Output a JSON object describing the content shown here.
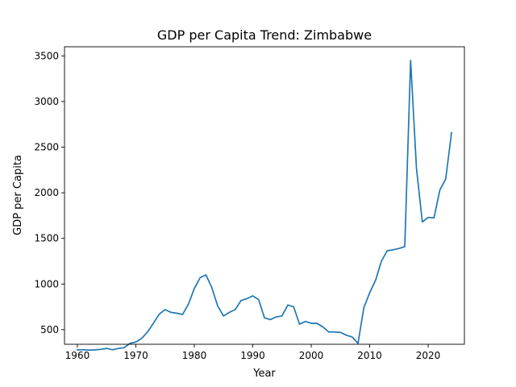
{
  "chart_data": {
    "type": "line",
    "title": "GDP per Capita Trend: Zimbabwe",
    "xlabel": "Year",
    "ylabel": "GDP per Capita",
    "xlim": [
      1957.8,
      2026.2
    ],
    "ylim": [
      340,
      3600
    ],
    "xticks": [
      1960,
      1970,
      1980,
      1990,
      2000,
      2010,
      2020
    ],
    "yticks": [
      500,
      1000,
      1500,
      2000,
      2500,
      3000,
      3500
    ],
    "grid": false,
    "series": [
      {
        "color": "#1f77b4",
        "x": [
          1960,
          1961,
          1962,
          1963,
          1964,
          1965,
          1966,
          1967,
          1968,
          1969,
          1970,
          1971,
          1972,
          1973,
          1974,
          1975,
          1976,
          1977,
          1978,
          1979,
          1980,
          1981,
          1982,
          1983,
          1984,
          1985,
          1986,
          1987,
          1988,
          1989,
          1990,
          1991,
          1992,
          1993,
          1994,
          1995,
          1996,
          1997,
          1998,
          1999,
          2000,
          2001,
          2002,
          2003,
          2004,
          2005,
          2006,
          2007,
          2008,
          2009,
          2010,
          2011,
          2012,
          2013,
          2014,
          2015,
          2016,
          2017,
          2018,
          2019,
          2020,
          2021,
          2022,
          2023,
          2024
        ],
        "y": [
          278,
          281,
          276,
          278,
          284,
          295,
          280,
          294,
          302,
          350,
          365,
          405,
          475,
          570,
          670,
          720,
          690,
          680,
          667,
          780,
          950,
          1070,
          1100,
          960,
          760,
          650,
          690,
          720,
          820,
          840,
          870,
          830,
          630,
          610,
          640,
          650,
          770,
          750,
          560,
          590,
          570,
          570,
          530,
          475,
          475,
          470,
          440,
          420,
          350,
          740,
          905,
          1040,
          1250,
          1365,
          1375,
          1390,
          1410,
          3450,
          2270,
          1680,
          1730,
          1725,
          2030,
          2150,
          2660
        ]
      }
    ]
  }
}
